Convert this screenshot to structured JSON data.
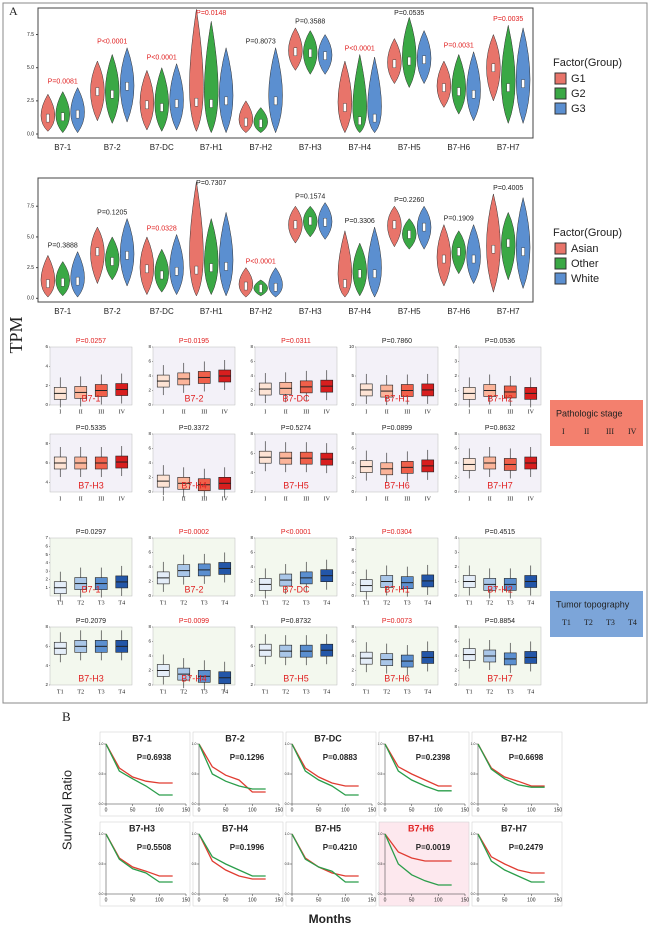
{
  "panel_label_a": "A",
  "y_axis_label": "TPM",
  "panel_label_b": "B",
  "chart_data": [
    {
      "type": "violin",
      "legend_title": "Factor(Group)",
      "categories": [
        "B7-1",
        "B7-2",
        "B7-DC",
        "B7-H1",
        "B7-H2",
        "B7-H3",
        "B7-H4",
        "B7-H5",
        "B7-H6",
        "B7-H7"
      ],
      "p_values": [
        "P=0.0081",
        "P<0.0001",
        "P<0.0001",
        "P=0.0148",
        "P=0.8073",
        "P=0.3588",
        "P<0.0001",
        "P=0.0535",
        "P=0.0031",
        "P=0.0035"
      ],
      "p_colors": [
        "#e02020",
        "#e02020",
        "#e02020",
        "#e02020",
        "#222222",
        "#222222",
        "#e02020",
        "#222222",
        "#e02020",
        "#e02020"
      ],
      "ylim": [
        -0.3,
        9.5
      ],
      "yticks": [
        {
          "value": 0,
          "label": "0.0"
        },
        {
          "value": 2.5,
          "label": "2.5"
        },
        {
          "value": 5,
          "label": "5.0"
        },
        {
          "value": 7.5,
          "label": "7.5"
        }
      ],
      "series": [
        {
          "name": "G1",
          "color": "#e8746a",
          "values": [
            1.2,
            3.2,
            2.2,
            2.4,
            0.9,
            6.2,
            2.0,
            5.3,
            3.5,
            5.0
          ],
          "lows": [
            0.2,
            1.0,
            0.3,
            0.2,
            0.1,
            4.8,
            0.1,
            3.8,
            2.0,
            2.5
          ],
          "highs": [
            3.0,
            5.5,
            4.8,
            9.4,
            2.5,
            8.0,
            5.5,
            7.2,
            5.5,
            7.5
          ]
        },
        {
          "name": "G2",
          "color": "#3aa845",
          "values": [
            1.3,
            3.0,
            2.0,
            2.3,
            0.8,
            6.1,
            1.0,
            5.5,
            3.2,
            3.5
          ],
          "lows": [
            0.1,
            0.8,
            0.2,
            0.1,
            0.1,
            4.5,
            0.1,
            3.5,
            1.5,
            0.8
          ],
          "highs": [
            3.2,
            6.0,
            5.0,
            8.5,
            2.0,
            7.8,
            6.0,
            8.8,
            6.0,
            8.2
          ]
        },
        {
          "name": "G3",
          "color": "#5b8fd0",
          "values": [
            1.5,
            3.6,
            2.3,
            2.5,
            2.5,
            5.9,
            1.2,
            5.6,
            3.0,
            3.8
          ],
          "lows": [
            0.1,
            0.9,
            0.3,
            0.1,
            0.1,
            4.5,
            0.1,
            3.8,
            1.0,
            0.8
          ],
          "highs": [
            3.5,
            6.5,
            5.3,
            6.5,
            6.5,
            7.5,
            5.8,
            7.8,
            6.2,
            8.0
          ]
        }
      ]
    },
    {
      "type": "violin",
      "legend_title": "Factor(Group)",
      "categories": [
        "B7-1",
        "B7-2",
        "B7-DC",
        "B7-H1",
        "B7-H2",
        "B7-H3",
        "B7-H4",
        "B7-H5",
        "B7-H6",
        "B7-H7"
      ],
      "p_values": [
        "P=0.3888",
        "P=0.1205",
        "P=0.0328",
        "P=0.7307",
        "P<0.0001",
        "P=0.1574",
        "P=0.3306",
        "P=0.2260",
        "P=0.1909",
        "P=0.4005"
      ],
      "p_colors": [
        "#222222",
        "#222222",
        "#e02020",
        "#222222",
        "#e02020",
        "#222222",
        "#222222",
        "#222222",
        "#222222",
        "#222222"
      ],
      "ylim": [
        -0.3,
        9.8
      ],
      "yticks": [
        {
          "value": 0,
          "label": "0.0"
        },
        {
          "value": 2.5,
          "label": "2.5"
        },
        {
          "value": 5,
          "label": "5.0"
        },
        {
          "value": 7.5,
          "label": "7.5"
        }
      ],
      "series": [
        {
          "name": "Asian",
          "color": "#e8746a",
          "values": [
            1.2,
            3.8,
            2.4,
            2.3,
            1.0,
            6.0,
            1.2,
            6.0,
            3.2,
            4.0
          ],
          "lows": [
            0.1,
            1.2,
            0.3,
            0.2,
            0.1,
            4.5,
            0.1,
            4.2,
            1.0,
            0.5
          ],
          "highs": [
            3.5,
            5.8,
            5.0,
            9.5,
            2.5,
            7.5,
            5.5,
            7.5,
            6.0,
            8.5
          ]
        },
        {
          "name": "Other",
          "color": "#3aa845",
          "values": [
            1.3,
            3.0,
            1.9,
            2.5,
            0.8,
            6.3,
            2.0,
            5.2,
            3.8,
            4.5
          ],
          "lows": [
            0.2,
            1.5,
            0.5,
            0.3,
            0.2,
            5.0,
            0.2,
            4.0,
            2.0,
            1.5
          ],
          "highs": [
            3.0,
            5.0,
            4.0,
            6.5,
            1.5,
            7.5,
            4.5,
            6.5,
            5.5,
            7.0
          ]
        },
        {
          "name": "White",
          "color": "#5b8fd0",
          "values": [
            1.4,
            3.5,
            2.2,
            2.6,
            0.9,
            6.2,
            2.0,
            5.8,
            3.2,
            3.8
          ],
          "lows": [
            0.1,
            1.0,
            0.3,
            0.2,
            0.1,
            4.8,
            0.1,
            4.0,
            1.2,
            0.8
          ],
          "highs": [
            3.8,
            6.5,
            5.2,
            7.0,
            2.5,
            7.8,
            5.8,
            7.5,
            6.0,
            8.2
          ]
        }
      ]
    },
    {
      "type": "box",
      "legend_title": "Pathologic stage",
      "categories": [
        "I",
        "II",
        "III",
        "IV"
      ],
      "colors": [
        "#fde3d4",
        "#fbb49a",
        "#f0604a",
        "#d81e1e"
      ],
      "background": "#f3f1f8",
      "panels": [
        {
          "name": "B7-1",
          "p_value": "P=0.0257",
          "p_color": "#e02020",
          "ylim": [
            0,
            6
          ],
          "yticks": [
            0,
            2,
            4,
            6
          ],
          "values": [
            1.2,
            1.3,
            1.5,
            1.6
          ]
        },
        {
          "name": "B7-2",
          "p_value": "P=0.0195",
          "p_color": "#e02020",
          "ylim": [
            0,
            8
          ],
          "yticks": [
            0,
            2,
            4,
            6,
            8
          ],
          "values": [
            3.3,
            3.6,
            3.8,
            4.0
          ]
        },
        {
          "name": "B7-DC",
          "p_value": "P=0.0311",
          "p_color": "#e02020",
          "ylim": [
            0,
            8
          ],
          "yticks": [
            0,
            2,
            4,
            6,
            8
          ],
          "values": [
            2.2,
            2.3,
            2.5,
            2.6
          ]
        },
        {
          "name": "B7-H1",
          "p_value": "P=0.7860",
          "p_color": "#222222",
          "ylim": [
            0,
            10
          ],
          "yticks": [
            0,
            5,
            10
          ],
          "values": [
            2.6,
            2.4,
            2.5,
            2.6
          ]
        },
        {
          "name": "B7-H2",
          "p_value": "P=0.0536",
          "p_color": "#222222",
          "ylim": [
            0,
            4
          ],
          "yticks": [
            0,
            1,
            2,
            3,
            4
          ],
          "values": [
            0.8,
            1.0,
            0.9,
            0.8
          ]
        },
        {
          "name": "B7-H3",
          "p_value": "P=0.5335",
          "p_color": "#222222",
          "ylim": [
            3,
            9
          ],
          "yticks": [
            4,
            6,
            8
          ],
          "values": [
            6.0,
            6.0,
            6.0,
            6.1
          ]
        },
        {
          "name": "B7-H4",
          "p_value": "P=0.3372",
          "p_color": "#222222",
          "ylim": [
            0,
            8
          ],
          "yticks": [
            0,
            2,
            4,
            6,
            8
          ],
          "values": [
            1.5,
            1.2,
            1.0,
            1.2
          ]
        },
        {
          "name": "B7-H5",
          "p_value": "P=0.5274",
          "p_color": "#222222",
          "ylim": [
            2,
            8
          ],
          "yticks": [
            2,
            4,
            6,
            8
          ],
          "values": [
            5.6,
            5.5,
            5.5,
            5.4
          ]
        },
        {
          "name": "B7-H6",
          "p_value": "P=0.0899",
          "p_color": "#222222",
          "ylim": [
            0,
            8
          ],
          "yticks": [
            0,
            2,
            4,
            6,
            8
          ],
          "values": [
            3.5,
            3.2,
            3.4,
            3.6
          ]
        },
        {
          "name": "B7-H7",
          "p_value": "P=0.8632",
          "p_color": "#222222",
          "ylim": [
            0,
            8
          ],
          "yticks": [
            0,
            2,
            4,
            6,
            8
          ],
          "values": [
            3.8,
            4.0,
            3.8,
            4.0
          ]
        }
      ]
    },
    {
      "type": "box",
      "legend_title": "Tumor topography",
      "categories": [
        "T1",
        "T2",
        "T3",
        "T4"
      ],
      "colors": [
        "#e4edf8",
        "#a9c6e8",
        "#5b8fd0",
        "#2356a8"
      ],
      "background": "#f3f8ee",
      "panels": [
        {
          "name": "B7-1",
          "p_value": "P=0.0297",
          "p_color": "#222222",
          "ylim": [
            0,
            7
          ],
          "yticks": [
            1,
            2,
            3,
            4,
            5,
            6,
            7
          ],
          "values": [
            1.0,
            1.5,
            1.5,
            1.7
          ]
        },
        {
          "name": "B7-2",
          "p_value": "P=0.0002",
          "p_color": "#e02020",
          "ylim": [
            0,
            8
          ],
          "yticks": [
            0,
            2,
            4,
            6,
            8
          ],
          "values": [
            2.5,
            3.5,
            3.6,
            3.8
          ]
        },
        {
          "name": "B7-DC",
          "p_value": "P<0.0001",
          "p_color": "#e02020",
          "ylim": [
            0,
            8
          ],
          "yticks": [
            0,
            2,
            4,
            6,
            8
          ],
          "values": [
            1.6,
            2.2,
            2.5,
            2.8
          ]
        },
        {
          "name": "B7-H1",
          "p_value": "P=0.0304",
          "p_color": "#e02020",
          "ylim": [
            0,
            10
          ],
          "yticks": [
            0,
            2,
            4,
            6,
            8,
            10
          ],
          "values": [
            1.8,
            2.5,
            2.3,
            2.6
          ]
        },
        {
          "name": "B7-H2",
          "p_value": "P=0.4515",
          "p_color": "#222222",
          "ylim": [
            0,
            4
          ],
          "yticks": [
            0,
            1,
            2,
            3,
            4
          ],
          "values": [
            1.0,
            0.8,
            0.8,
            1.0
          ]
        },
        {
          "name": "B7-H3",
          "p_value": "P=0.2079",
          "p_color": "#222222",
          "ylim": [
            2,
            8
          ],
          "yticks": [
            2,
            4,
            6,
            8
          ],
          "values": [
            5.8,
            6.0,
            6.0,
            6.0
          ]
        },
        {
          "name": "B7-H4",
          "p_value": "P=0.0099",
          "p_color": "#e02020",
          "ylim": [
            0,
            8
          ],
          "yticks": [
            0,
            2,
            4,
            6,
            8
          ],
          "values": [
            2.0,
            1.5,
            1.2,
            1.0
          ]
        },
        {
          "name": "B7-H5",
          "p_value": "P=0.8732",
          "p_color": "#222222",
          "ylim": [
            2,
            8
          ],
          "yticks": [
            2,
            4,
            6,
            8
          ],
          "values": [
            5.6,
            5.5,
            5.5,
            5.6
          ]
        },
        {
          "name": "B7-H6",
          "p_value": "P=0.0073",
          "p_color": "#e02020",
          "ylim": [
            0,
            8
          ],
          "yticks": [
            0,
            2,
            4,
            6,
            8
          ],
          "values": [
            3.7,
            3.5,
            3.3,
            3.8
          ]
        },
        {
          "name": "B7-H7",
          "p_value": "P=0.8854",
          "p_color": "#222222",
          "ylim": [
            0,
            8
          ],
          "yticks": [
            0,
            2,
            4,
            6,
            8
          ],
          "values": [
            4.2,
            4.0,
            3.6,
            3.8
          ]
        }
      ]
    },
    {
      "type": "survival",
      "y_label": "Survival Ratio",
      "x_label": "Months",
      "colors": [
        "#e03c31",
        "#2a9d4a"
      ],
      "x": [
        0,
        25,
        50,
        75,
        100,
        125
      ],
      "xlim": [
        0,
        150
      ],
      "xticks": [
        0,
        50,
        100,
        150
      ],
      "ylim": [
        0,
        1
      ],
      "yticks": [
        {
          "value": 0,
          "label": "0.0"
        },
        {
          "value": 0.5,
          "label": "0.5"
        },
        {
          "value": 1,
          "label": "1.0"
        }
      ],
      "panels": [
        {
          "name": "B7-1",
          "p_value": "P=0.6938",
          "name_color": "#222222",
          "highlight": false,
          "curves": [
            [
              1,
              0.6,
              0.45,
              0.38,
              0.35,
              0.35
            ],
            [
              1,
              0.55,
              0.42,
              0.3,
              0.15,
              0.15
            ]
          ]
        },
        {
          "name": "B7-2",
          "p_value": "P=0.1296",
          "name_color": "#222222",
          "highlight": false,
          "curves": [
            [
              1,
              0.62,
              0.48,
              0.4,
              0.2,
              0.2
            ],
            [
              1,
              0.5,
              0.38,
              0.3,
              0.25,
              0.25
            ]
          ]
        },
        {
          "name": "B7-DC",
          "p_value": "P=0.0883",
          "name_color": "#222222",
          "highlight": false,
          "curves": [
            [
              1,
              0.6,
              0.45,
              0.35,
              0.3,
              0.3
            ],
            [
              1,
              0.55,
              0.4,
              0.3,
              0.15,
              0.15
            ]
          ]
        },
        {
          "name": "B7-H1",
          "p_value": "P=0.2398",
          "name_color": "#222222",
          "highlight": false,
          "curves": [
            [
              1,
              0.62,
              0.5,
              0.4,
              0.3,
              0.3
            ],
            [
              1,
              0.55,
              0.4,
              0.3,
              0.22,
              0.22
            ]
          ]
        },
        {
          "name": "B7-H2",
          "p_value": "P=0.6698",
          "name_color": "#222222",
          "highlight": false,
          "curves": [
            [
              1,
              0.6,
              0.45,
              0.38,
              0.3,
              0.3
            ],
            [
              1,
              0.58,
              0.42,
              0.32,
              0.28,
              0.28
            ]
          ]
        },
        {
          "name": "B7-H3",
          "p_value": "P=0.5508",
          "name_color": "#222222",
          "highlight": false,
          "curves": [
            [
              1,
              0.6,
              0.45,
              0.38,
              0.3,
              0.3
            ],
            [
              1,
              0.58,
              0.42,
              0.35,
              0.2,
              0.2
            ]
          ]
        },
        {
          "name": "B7-H4",
          "p_value": "P=0.1996",
          "name_color": "#222222",
          "highlight": false,
          "curves": [
            [
              1,
              0.55,
              0.4,
              0.3,
              0.25,
              0.25
            ],
            [
              1,
              0.62,
              0.5,
              0.4,
              0.3,
              0.3
            ]
          ]
        },
        {
          "name": "B7-H5",
          "p_value": "P=0.4210",
          "name_color": "#222222",
          "highlight": false,
          "curves": [
            [
              1,
              0.6,
              0.45,
              0.35,
              0.3,
              0.3
            ],
            [
              1,
              0.58,
              0.45,
              0.38,
              0.2,
              0.2
            ]
          ]
        },
        {
          "name": "B7-H6",
          "p_value": "P=0.0019",
          "name_color": "#e02020",
          "highlight": true,
          "curves": [
            [
              1,
              0.7,
              0.6,
              0.55,
              0.55,
              0.55
            ],
            [
              1,
              0.5,
              0.32,
              0.22,
              0.15,
              0.15
            ]
          ]
        },
        {
          "name": "B7-H7",
          "p_value": "P=0.2479",
          "name_color": "#222222",
          "highlight": false,
          "curves": [
            [
              1,
              0.62,
              0.5,
              0.4,
              0.35,
              0.35
            ],
            [
              1,
              0.55,
              0.4,
              0.3,
              0.2,
              0.2
            ]
          ]
        }
      ]
    }
  ]
}
